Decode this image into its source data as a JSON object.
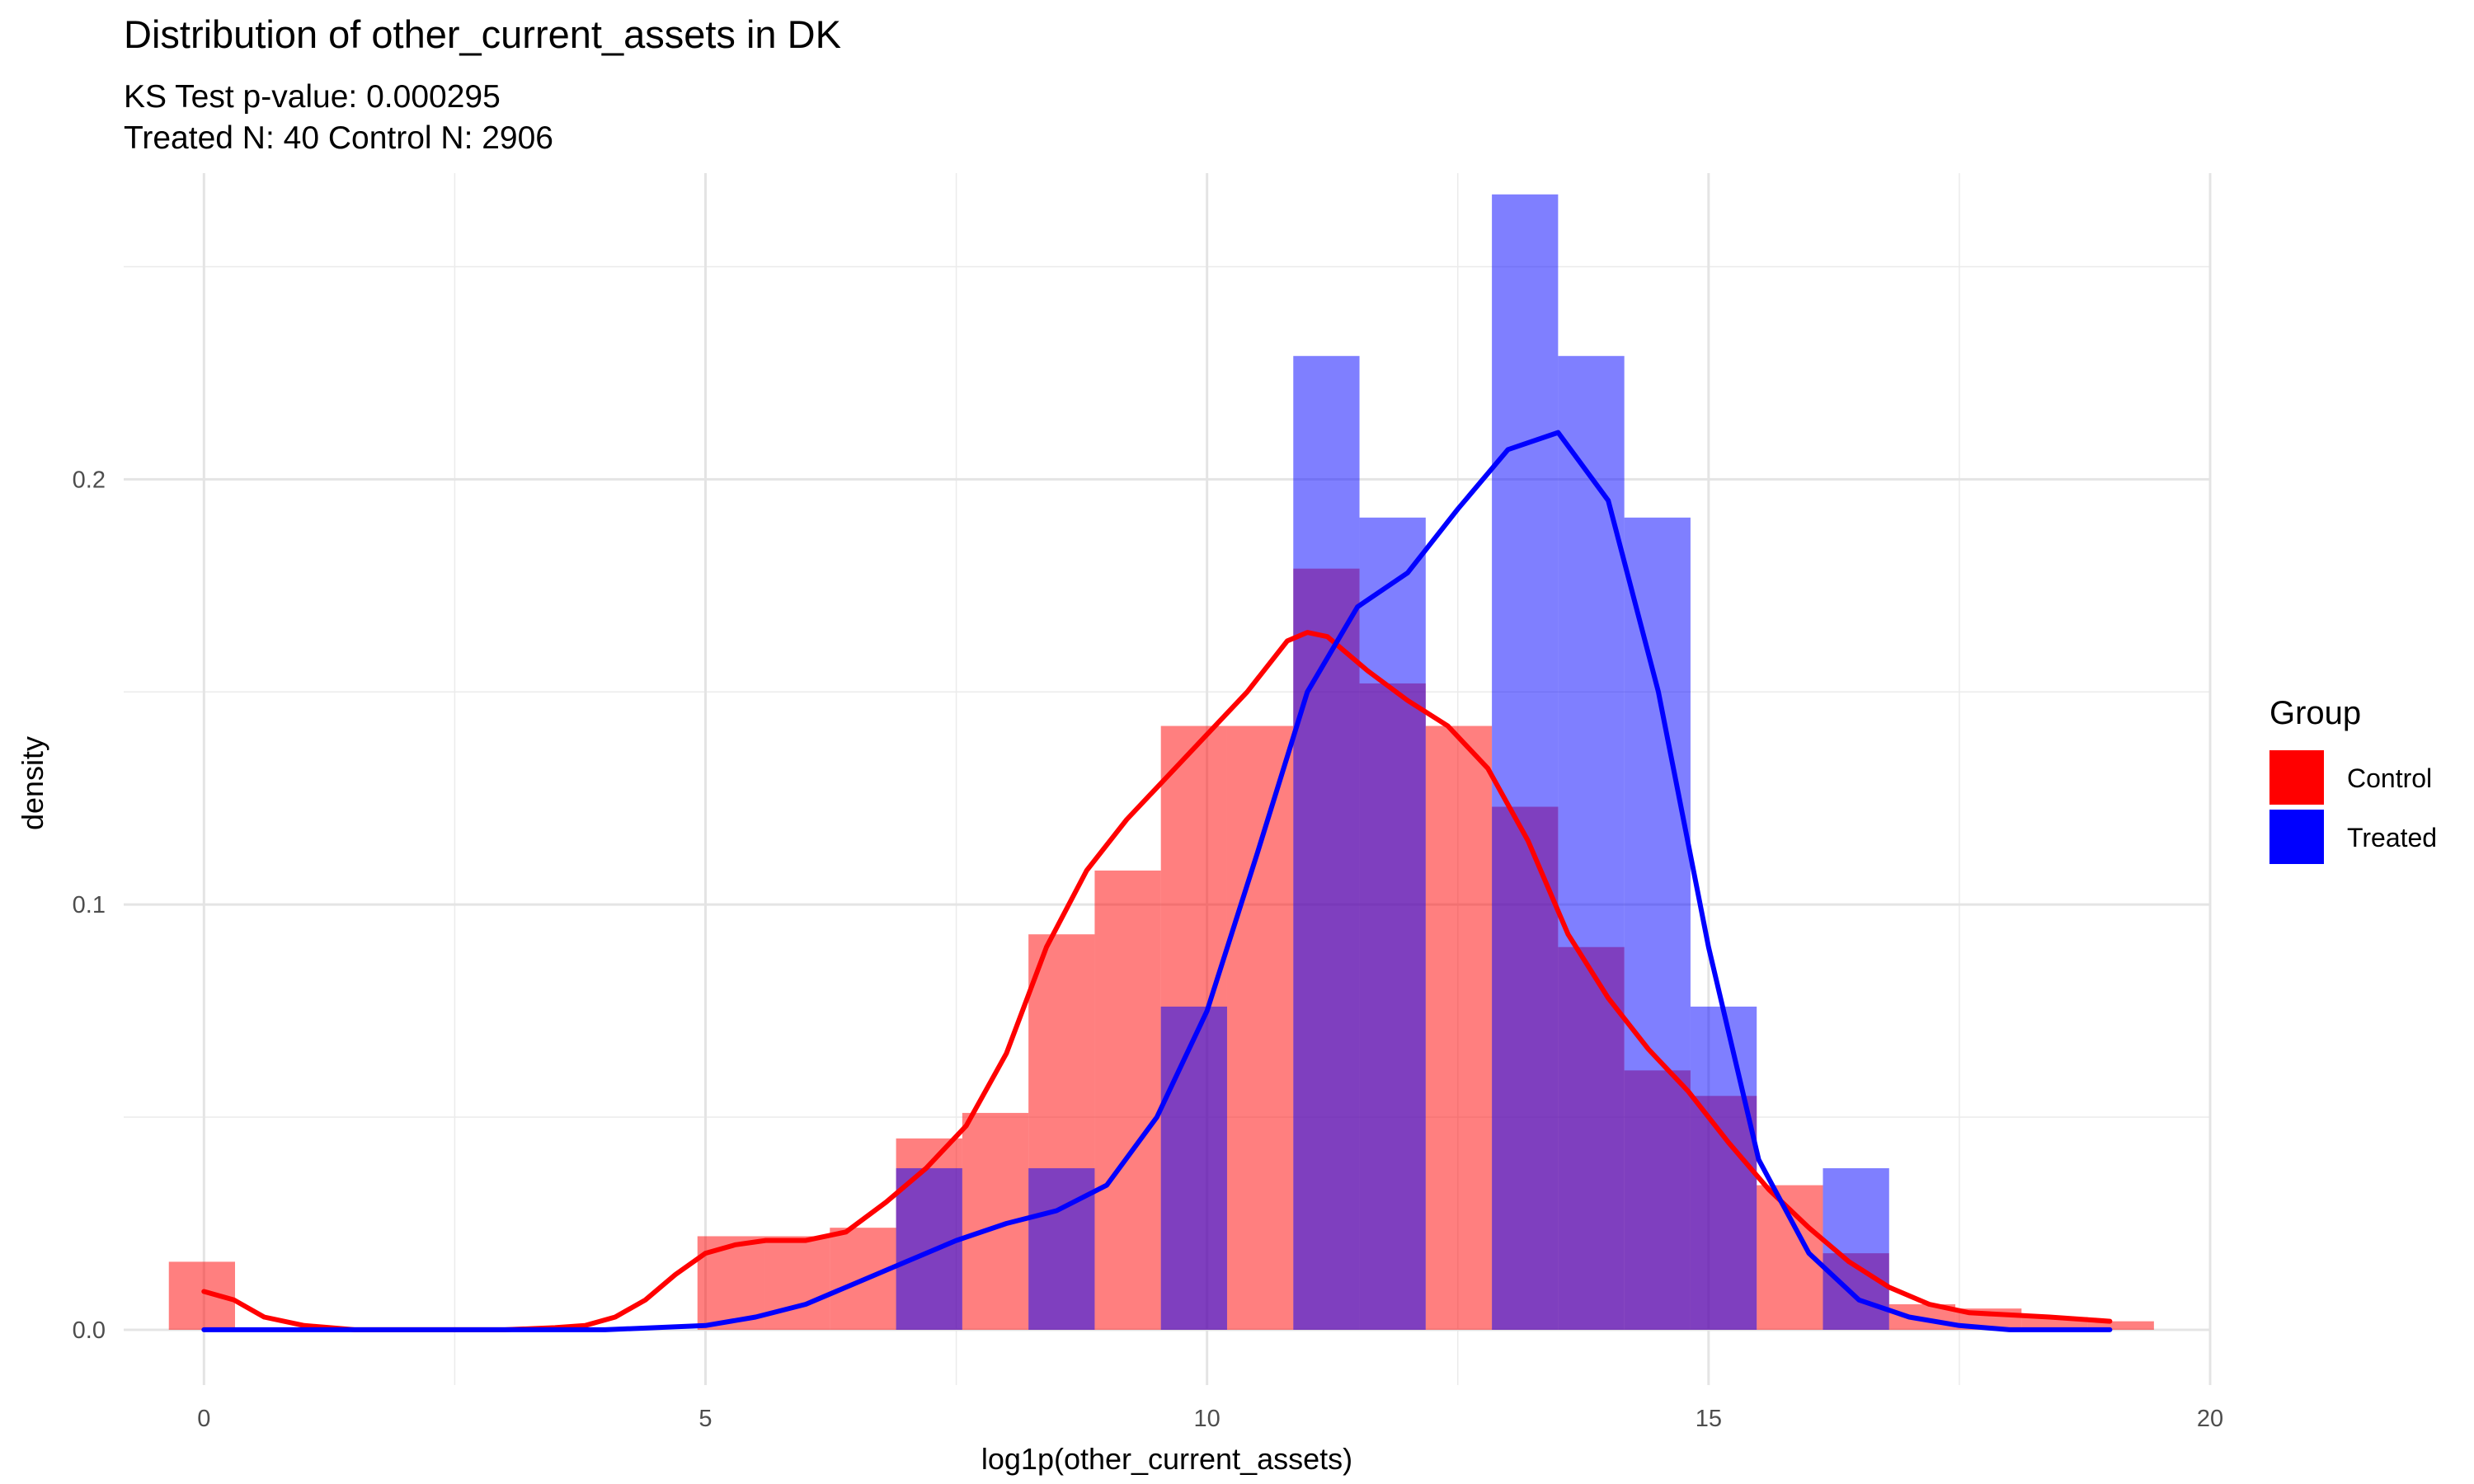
{
  "chart_data": {
    "type": "histogram",
    "title": "Distribution of other_current_assets in DK",
    "subtitle_line1": "KS Test p-value: 0.000295",
    "subtitle_line2": "Treated N: 40 Control N: 2906",
    "xlabel": "log1p(other_current_assets)",
    "ylabel": "density",
    "xlim": [
      -0.8,
      20.0
    ],
    "ylim": [
      -0.013,
      0.272
    ],
    "x_ticks": [
      0,
      5,
      10,
      15,
      20
    ],
    "x_tick_labels": [
      "0",
      "5",
      "10",
      "15",
      "20"
    ],
    "y_ticks": [
      0.0,
      0.1,
      0.2
    ],
    "y_tick_labels": [
      "0.0",
      "0.1",
      "0.2"
    ],
    "grid": true,
    "legend": {
      "title": "Group",
      "position": "right",
      "entries": [
        {
          "label": "Control",
          "color": "#ff0000"
        },
        {
          "label": "Treated",
          "color": "#0000ff"
        }
      ]
    },
    "series": [
      {
        "name": "Control",
        "color": "#ff0000",
        "bar_opacity": 0.5,
        "bins": [
          {
            "x0": -0.35,
            "x1": 0.31,
            "density": 0.016
          },
          {
            "x0": 4.92,
            "x1": 5.58,
            "density": 0.022
          },
          {
            "x0": 5.58,
            "x1": 6.24,
            "density": 0.022
          },
          {
            "x0": 6.24,
            "x1": 6.9,
            "density": 0.024
          },
          {
            "x0": 6.9,
            "x1": 7.56,
            "density": 0.045
          },
          {
            "x0": 7.56,
            "x1": 8.22,
            "density": 0.051
          },
          {
            "x0": 8.22,
            "x1": 8.88,
            "density": 0.093
          },
          {
            "x0": 8.88,
            "x1": 9.54,
            "density": 0.108
          },
          {
            "x0": 9.54,
            "x1": 10.2,
            "density": 0.142
          },
          {
            "x0": 10.2,
            "x1": 10.86,
            "density": 0.142
          },
          {
            "x0": 10.86,
            "x1": 11.52,
            "density": 0.179
          },
          {
            "x0": 11.52,
            "x1": 12.18,
            "density": 0.152
          },
          {
            "x0": 12.18,
            "x1": 12.84,
            "density": 0.142
          },
          {
            "x0": 12.84,
            "x1": 13.5,
            "density": 0.123
          },
          {
            "x0": 13.5,
            "x1": 14.16,
            "density": 0.09
          },
          {
            "x0": 14.16,
            "x1": 14.82,
            "density": 0.061
          },
          {
            "x0": 14.82,
            "x1": 15.48,
            "density": 0.055
          },
          {
            "x0": 15.48,
            "x1": 16.14,
            "density": 0.034
          },
          {
            "x0": 16.14,
            "x1": 16.8,
            "density": 0.018
          },
          {
            "x0": 16.8,
            "x1": 17.46,
            "density": 0.006
          },
          {
            "x0": 17.46,
            "x1": 18.12,
            "density": 0.005
          },
          {
            "x0": 18.12,
            "x1": 18.78,
            "density": 0.003
          },
          {
            "x0": 18.78,
            "x1": 19.44,
            "density": 0.002
          }
        ],
        "density_curve": {
          "x": [
            0,
            0.3,
            0.6,
            1.0,
            1.5,
            2,
            2.5,
            3,
            3.5,
            3.8,
            4.1,
            4.4,
            4.7,
            5.0,
            5.3,
            5.6,
            6.0,
            6.4,
            6.8,
            7.2,
            7.6,
            8.0,
            8.4,
            8.8,
            9.2,
            9.6,
            10.0,
            10.4,
            10.8,
            11.0,
            11.2,
            11.6,
            12.0,
            12.4,
            12.8,
            13.2,
            13.6,
            14.0,
            14.4,
            14.8,
            15.2,
            15.6,
            16.0,
            16.4,
            16.8,
            17.2,
            17.6,
            18.0,
            18.4,
            19.0
          ],
          "y": [
            0.009,
            0.007,
            0.003,
            0.001,
            0.0,
            0.0,
            0.0,
            0.0,
            0.0005,
            0.001,
            0.003,
            0.007,
            0.013,
            0.018,
            0.02,
            0.021,
            0.021,
            0.023,
            0.03,
            0.038,
            0.048,
            0.065,
            0.09,
            0.108,
            0.12,
            0.13,
            0.14,
            0.15,
            0.162,
            0.164,
            0.163,
            0.155,
            0.148,
            0.142,
            0.132,
            0.115,
            0.093,
            0.078,
            0.066,
            0.056,
            0.044,
            0.033,
            0.024,
            0.016,
            0.01,
            0.006,
            0.004,
            0.0035,
            0.003,
            0.002
          ]
        }
      },
      {
        "name": "Treated",
        "color": "#0000ff",
        "bar_opacity": 0.5,
        "bins": [
          {
            "x0": 6.9,
            "x1": 7.56,
            "density": 0.038
          },
          {
            "x0": 8.22,
            "x1": 8.88,
            "density": 0.038
          },
          {
            "x0": 9.54,
            "x1": 10.2,
            "density": 0.076
          },
          {
            "x0": 10.86,
            "x1": 11.52,
            "density": 0.229
          },
          {
            "x0": 11.52,
            "x1": 12.18,
            "density": 0.191
          },
          {
            "x0": 12.84,
            "x1": 13.5,
            "density": 0.267
          },
          {
            "x0": 13.5,
            "x1": 14.16,
            "density": 0.229
          },
          {
            "x0": 14.16,
            "x1": 14.82,
            "density": 0.191
          },
          {
            "x0": 14.82,
            "x1": 15.48,
            "density": 0.076
          },
          {
            "x0": 16.14,
            "x1": 16.8,
            "density": 0.038
          }
        ],
        "density_curve": {
          "x": [
            0,
            2,
            4,
            5,
            5.5,
            6,
            6.5,
            7,
            7.5,
            8,
            8.5,
            9,
            9.5,
            10,
            10.5,
            11,
            11.5,
            12,
            12.5,
            13,
            13.5,
            14,
            14.5,
            15,
            15.5,
            16,
            16.5,
            17,
            17.5,
            18,
            19.0
          ],
          "y": [
            0.0,
            0.0,
            0.0,
            0.001,
            0.003,
            0.006,
            0.011,
            0.016,
            0.021,
            0.025,
            0.028,
            0.034,
            0.05,
            0.075,
            0.112,
            0.15,
            0.17,
            0.178,
            0.193,
            0.207,
            0.211,
            0.195,
            0.15,
            0.09,
            0.04,
            0.018,
            0.007,
            0.003,
            0.001,
            0.0,
            0.0
          ]
        }
      }
    ]
  }
}
